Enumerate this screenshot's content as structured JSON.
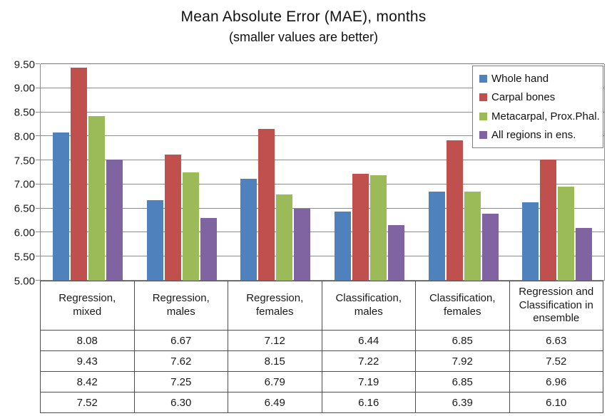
{
  "title": "Mean Absolute Error (MAE), months",
  "subtitle": "(smaller values are better)",
  "chart_data": {
    "type": "bar",
    "title": "Mean Absolute Error (MAE), months",
    "subtitle": "(smaller values are better)",
    "categories": [
      "Regression, mixed",
      "Regression, males",
      "Regression, females",
      "Classification, males",
      "Classification, females",
      "Regression and Classification in ensemble"
    ],
    "series": [
      {
        "name": "Whole hand",
        "color": "#4f81bd",
        "values": [
          8.08,
          6.67,
          7.12,
          6.44,
          6.85,
          6.63
        ]
      },
      {
        "name": "Carpal bones",
        "color": "#c0504d",
        "values": [
          9.43,
          7.62,
          8.15,
          7.22,
          7.92,
          7.52
        ]
      },
      {
        "name": "Metacarpal, Prox.Phal.",
        "color": "#9bbb59",
        "values": [
          8.42,
          7.25,
          6.79,
          7.19,
          6.85,
          6.96
        ]
      },
      {
        "name": "All regions in ens.",
        "color": "#8064a2",
        "values": [
          7.52,
          6.3,
          6.49,
          6.16,
          6.39,
          6.1
        ]
      }
    ],
    "ylim": [
      5.0,
      9.5
    ],
    "y_ticks": [
      "5.00",
      "5.50",
      "6.00",
      "6.50",
      "7.00",
      "7.50",
      "8.00",
      "8.50",
      "9.00",
      "9.50"
    ],
    "grid": true,
    "legend_position": "top-right",
    "data_table_shown": true,
    "xlabel": "",
    "ylabel": ""
  },
  "style": {
    "gridline_color": "#8c8c8c",
    "top_border_color": "#4f81bd",
    "table_border_color": "#4d4d4d",
    "legend_border_color": "#7f7f7f"
  }
}
